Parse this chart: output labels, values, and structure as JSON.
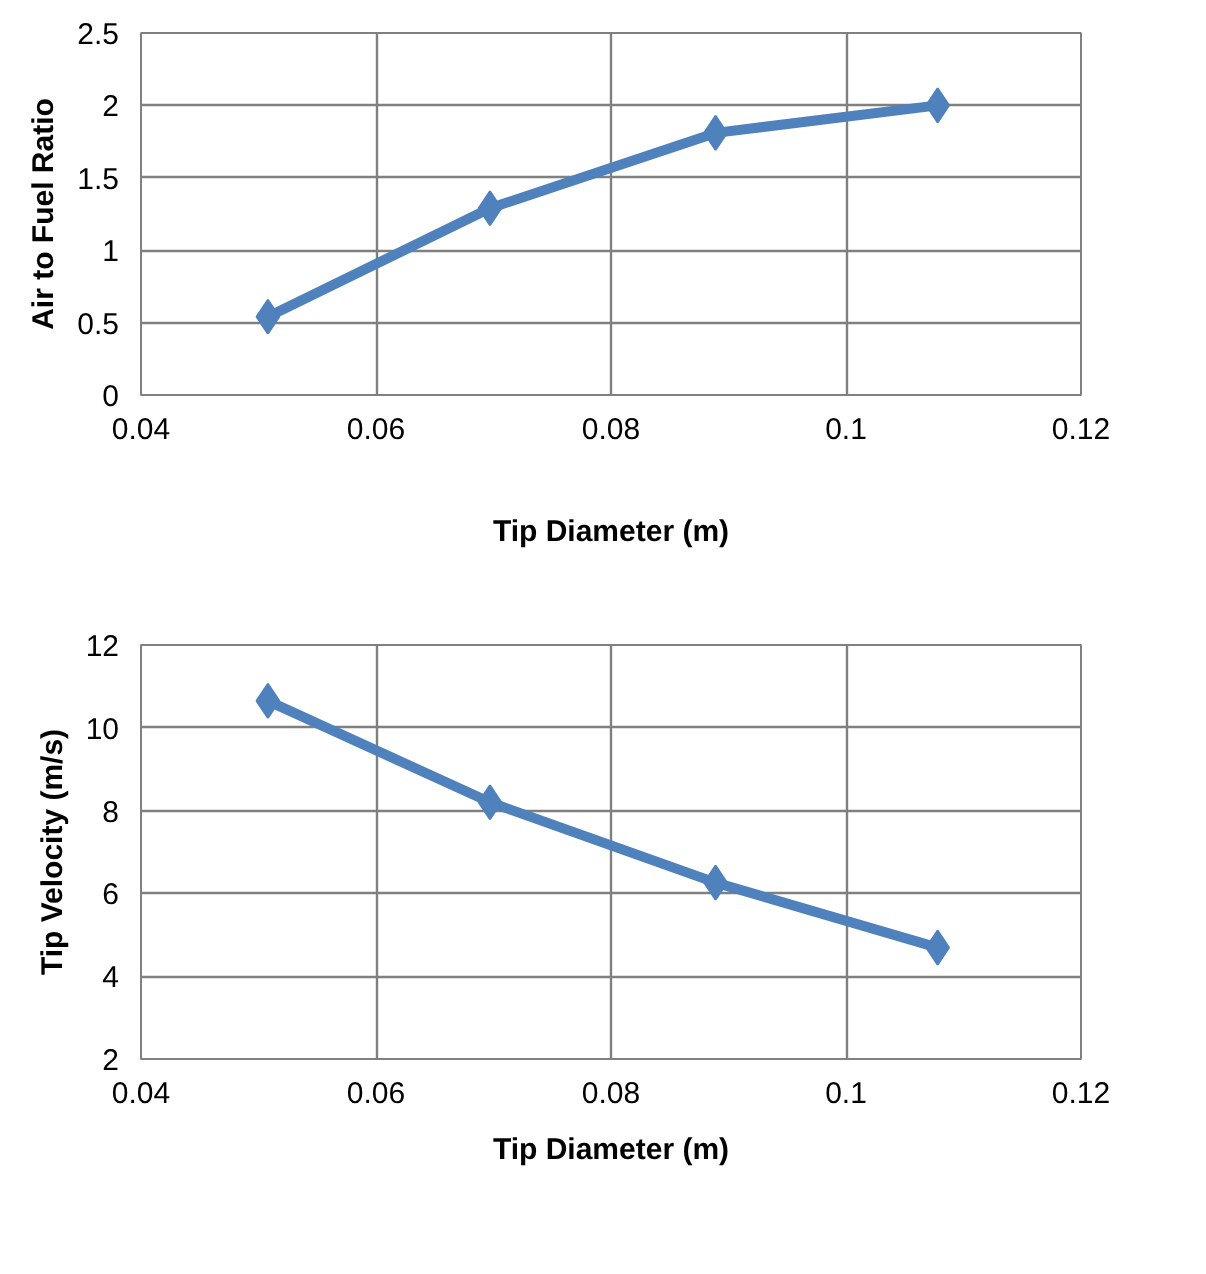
{
  "chart_data": [
    {
      "type": "line",
      "xlabel": "Tip Diameter (m)",
      "ylabel": "Air to Fuel Ratio",
      "x": [
        0.0508,
        0.0697,
        0.0889,
        0.1078
      ],
      "series": [
        {
          "color": "#4f81bd",
          "values": [
            0.54,
            1.29,
            1.81,
            2.0
          ]
        }
      ],
      "xlim": [
        0.04,
        0.12
      ],
      "xticks": [
        0.04,
        0.06,
        0.08,
        0.1,
        0.12
      ],
      "ylim": [
        0,
        2.5
      ],
      "yticks": [
        0,
        0.5,
        1,
        1.5,
        2,
        2.5
      ],
      "grid": true,
      "marker": "diamond",
      "line_style": "solid"
    },
    {
      "type": "line",
      "xlabel": "Tip Diameter (m)",
      "ylabel": "Tip Velocity (m/s)",
      "x": [
        0.0508,
        0.0697,
        0.0889,
        0.1078
      ],
      "series": [
        {
          "color": "#4f81bd",
          "values": [
            10.65,
            8.2,
            6.26,
            4.69
          ]
        }
      ],
      "xlim": [
        0.04,
        0.12
      ],
      "xticks": [
        0.04,
        0.06,
        0.08,
        0.1,
        0.12
      ],
      "ylim": [
        2,
        12
      ],
      "yticks": [
        2,
        4,
        6,
        8,
        10,
        12
      ],
      "grid": true,
      "marker": "diamond",
      "line_style": "solid"
    }
  ]
}
